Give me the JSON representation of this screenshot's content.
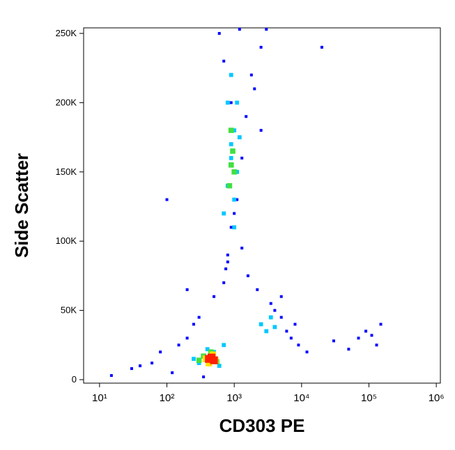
{
  "chart_data": {
    "type": "scatter",
    "x_label": "CD303 PE",
    "y_label": "Side Scatter",
    "xlog": true,
    "xlim": [
      5.8,
      1150000
    ],
    "ylim": [
      -2500,
      254000
    ],
    "xticks": [
      {
        "value": 10,
        "label": "10¹"
      },
      {
        "value": 100,
        "label": "10²"
      },
      {
        "value": 1000,
        "label": "10³"
      },
      {
        "value": 10000,
        "label": "10⁴"
      },
      {
        "value": 100000,
        "label": "10⁵"
      },
      {
        "value": 1000000,
        "label": "10⁶"
      }
    ],
    "yticks": [
      0,
      {
        "value": 50000,
        "label": "50K"
      },
      {
        "value": 100000,
        "label": "100K"
      },
      {
        "value": 150000,
        "label": "150K"
      },
      {
        "value": 200000,
        "label": "200K"
      },
      {
        "value": 250000,
        "label": "250K"
      }
    ],
    "series": [
      {
        "color": "#0000ff",
        "x": [
          15,
          30,
          60,
          80,
          120,
          150,
          200,
          250,
          300,
          350,
          500,
          700,
          800,
          900,
          1100,
          1300,
          1500,
          2000,
          2500,
          3000,
          4000,
          5000,
          6000,
          7000,
          8000,
          9000,
          12000,
          30000,
          50000,
          70000,
          90000,
          110000,
          130000,
          150000,
          20000,
          600,
          700,
          1200,
          1800,
          2500,
          900,
          1000,
          1300,
          800,
          750,
          1600,
          2200,
          3500,
          5000,
          200,
          100,
          40
        ],
        "y": [
          3000,
          8000,
          12000,
          20000,
          5000,
          25000,
          30000,
          40000,
          45000,
          2000,
          60000,
          70000,
          90000,
          110000,
          130000,
          160000,
          190000,
          210000,
          240000,
          253000,
          50000,
          45000,
          35000,
          30000,
          40000,
          25000,
          20000,
          28000,
          22000,
          30000,
          35000,
          32000,
          25000,
          40000,
          240000,
          250000,
          230000,
          253000,
          220000,
          180000,
          200000,
          120000,
          95000,
          85000,
          80000,
          75000,
          65000,
          55000,
          60000,
          65000,
          130000,
          10000
        ]
      },
      {
        "color": "#00c8ff",
        "x": [
          700,
          800,
          900,
          1000,
          1100,
          900,
          1000,
          800,
          1100,
          1000,
          900,
          1200,
          300,
          400,
          500,
          600,
          250,
          700,
          2500,
          3000,
          4000,
          3500
        ],
        "y": [
          120000,
          140000,
          160000,
          180000,
          200000,
          220000,
          110000,
          200000,
          150000,
          130000,
          170000,
          175000,
          12000,
          22000,
          20000,
          10000,
          15000,
          25000,
          40000,
          35000,
          38000,
          45000
        ]
      },
      {
        "color": "#40e040",
        "x": [
          850,
          900,
          950,
          1000,
          900,
          350,
          450,
          550,
          300
        ],
        "y": [
          140000,
          155000,
          165000,
          150000,
          180000,
          17000,
          20000,
          13000,
          14000
        ]
      },
      {
        "color": "#ffe000",
        "x": [
          380,
          480,
          420,
          520
        ],
        "y": [
          15000,
          18000,
          12000,
          14000
        ]
      },
      {
        "color": "#ff2000",
        "x": [
          420,
          460,
          500
        ],
        "y": [
          15000,
          16000,
          14000
        ]
      }
    ]
  }
}
